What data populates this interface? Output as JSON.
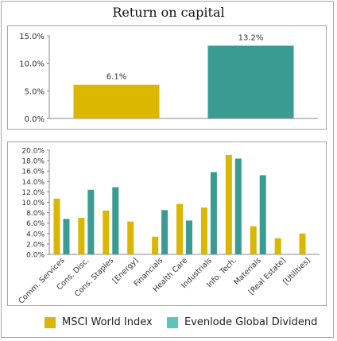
{
  "title": "Return on capital",
  "colors": {
    "msci": "#dcb700",
    "evenlode": "#3a9b93",
    "evenlode_legend": "#5cc4bb",
    "axis": "#888888",
    "text": "#333333"
  },
  "legend": {
    "msci_label": "MSCI World Index",
    "evenlode_label": "Evenlode Global Dividend"
  },
  "chart_data": [
    {
      "type": "bar",
      "title": "Return on capital",
      "categories": [
        "",
        ""
      ],
      "series": [
        {
          "name": "MSCI World Index",
          "values": [
            6.1,
            null
          ]
        },
        {
          "name": "Evenlode Global Dividend",
          "values": [
            null,
            13.2
          ]
        }
      ],
      "data_labels": [
        "6.1%",
        "13.2%"
      ],
      "ylim": [
        0,
        15
      ],
      "yticks": [
        "0.0%",
        "5.0%",
        "10.0%",
        "15.0%"
      ],
      "ytick_values": [
        0,
        5,
        10,
        15
      ],
      "grid": false
    },
    {
      "type": "bar",
      "categories": [
        "Comm. Services",
        "Cons. Disc.",
        "Cons. Staples",
        "[Energy]",
        "Financials",
        "Health Care",
        "Industrials",
        "Info. Tech.",
        "Materials",
        "[Real Estate]",
        "[Utilities]"
      ],
      "series": [
        {
          "name": "MSCI World Index",
          "values": [
            10.7,
            7.0,
            8.4,
            6.3,
            3.4,
            9.7,
            9.0,
            19.1,
            5.4,
            3.1,
            4.0
          ]
        },
        {
          "name": "Evenlode Global Dividend",
          "values": [
            6.8,
            12.4,
            12.9,
            null,
            8.5,
            6.5,
            15.8,
            18.4,
            15.2,
            null,
            null
          ]
        }
      ],
      "ylim": [
        0,
        20
      ],
      "yticks": [
        "0.0%",
        "2.0%",
        "4.0%",
        "6.0%",
        "8.0%",
        "10.0%",
        "12.0%",
        "14.0%",
        "16.0%",
        "18.0%",
        "20.0%"
      ],
      "ytick_values": [
        0,
        2,
        4,
        6,
        8,
        10,
        12,
        14,
        16,
        18,
        20
      ],
      "grid": false,
      "legend_position": "bottom"
    }
  ]
}
